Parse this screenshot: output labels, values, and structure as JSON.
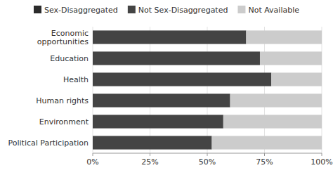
{
  "chart_data": {
    "type": "bar",
    "orientation": "horizontal",
    "stacked": true,
    "categories": [
      "Economic\nopportunities",
      "Education",
      "Health",
      "Human rights",
      "Environment",
      "Political Participation"
    ],
    "series": [
      {
        "name": "Sex-Disaggregated",
        "color": "#2b2b2b",
        "values": [
          0,
          0,
          0,
          0,
          0,
          0
        ]
      },
      {
        "name": "Not Sex-Disaggregated",
        "color": "#444444",
        "values": [
          67,
          73,
          78,
          60,
          57,
          52
        ]
      },
      {
        "name": "Not Available",
        "color": "#cccccc",
        "values": [
          33,
          27,
          22,
          40,
          43,
          48
        ]
      }
    ],
    "xlim": [
      0,
      100
    ],
    "xticks": [
      {
        "value": 0,
        "label": "0%"
      },
      {
        "value": 25,
        "label": "25%"
      },
      {
        "value": 50,
        "label": "50%"
      },
      {
        "value": 75,
        "label": "75%"
      },
      {
        "value": 100,
        "label": "100%"
      }
    ],
    "grid": true,
    "legend": "top"
  }
}
